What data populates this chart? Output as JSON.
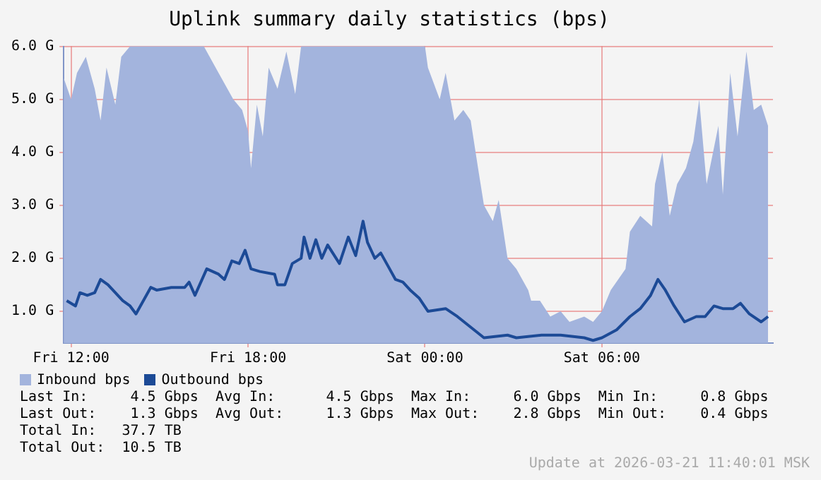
{
  "chart_data": {
    "type": "area",
    "title": "Uplink summary daily statistics (bps)",
    "xlim": [
      "2026-03-20T11:45",
      "2026-03-21T11:48"
    ],
    "xticks": [
      {
        "value": "2026-03-20T12:00",
        "label": "Fri 12:00"
      },
      {
        "value": "2026-03-20T18:00",
        "label": "Fri 18:00"
      },
      {
        "value": "2026-03-21T00:00",
        "label": "Sat 00:00"
      },
      {
        "value": "2026-03-21T06:00",
        "label": "Sat 06:00"
      }
    ],
    "ylim": [
      0.4,
      6.0
    ],
    "yticks": [
      {
        "value": 1,
        "label": "1.0 G"
      },
      {
        "value": 2,
        "label": "2.0 G"
      },
      {
        "value": 3,
        "label": "3.0 G"
      },
      {
        "value": 4,
        "label": "4.0 G"
      },
      {
        "value": 5,
        "label": "5.0 G"
      },
      {
        "value": 6,
        "label": "6.0 G"
      }
    ],
    "grid": true,
    "legend": "bottom",
    "series": [
      {
        "name": "Inbound bps",
        "color": "#a3b4dd",
        "x": [
          "2026-03-20T11:45",
          "2026-03-20T12:00",
          "2026-03-20T12:12",
          "2026-03-20T12:30",
          "2026-03-20T12:48",
          "2026-03-20T13:00",
          "2026-03-20T13:12",
          "2026-03-20T13:30",
          "2026-03-20T13:42",
          "2026-03-20T14:00",
          "2026-03-20T16:30",
          "2026-03-20T17:00",
          "2026-03-20T17:30",
          "2026-03-20T17:48",
          "2026-03-20T18:00",
          "2026-03-20T18:06",
          "2026-03-20T18:18",
          "2026-03-20T18:30",
          "2026-03-20T18:42",
          "2026-03-20T19:00",
          "2026-03-20T19:18",
          "2026-03-20T19:36",
          "2026-03-20T19:48",
          "2026-03-20T23:00",
          "2026-03-21T00:00",
          "2026-03-21T00:06",
          "2026-03-21T00:30",
          "2026-03-21T00:42",
          "2026-03-21T01:00",
          "2026-03-21T01:18",
          "2026-03-21T01:33",
          "2026-03-21T01:48",
          "2026-03-21T02:00",
          "2026-03-21T02:18",
          "2026-03-21T02:30",
          "2026-03-21T02:48",
          "2026-03-21T03:06",
          "2026-03-21T03:30",
          "2026-03-21T03:36",
          "2026-03-21T03:54",
          "2026-03-21T04:15",
          "2026-03-21T04:36",
          "2026-03-21T04:54",
          "2026-03-21T05:24",
          "2026-03-21T05:42",
          "2026-03-21T06:00",
          "2026-03-21T06:18",
          "2026-03-21T06:48",
          "2026-03-21T06:57",
          "2026-03-21T07:18",
          "2026-03-21T07:42",
          "2026-03-21T07:48",
          "2026-03-21T08:03",
          "2026-03-21T08:18",
          "2026-03-21T08:33",
          "2026-03-21T08:51",
          "2026-03-21T09:06",
          "2026-03-21T09:18",
          "2026-03-21T09:33",
          "2026-03-21T09:57",
          "2026-03-21T10:06",
          "2026-03-21T10:21",
          "2026-03-21T10:36",
          "2026-03-21T10:54",
          "2026-03-21T11:09",
          "2026-03-21T11:24",
          "2026-03-21T11:38"
        ],
        "values": [
          5.4,
          5.0,
          5.5,
          5.8,
          5.2,
          4.6,
          5.6,
          4.9,
          5.8,
          6.0,
          6.0,
          5.5,
          5.0,
          4.8,
          4.4,
          3.7,
          4.9,
          4.3,
          5.6,
          5.2,
          5.9,
          5.1,
          6.0,
          6.0,
          6.0,
          5.6,
          5.0,
          5.5,
          4.6,
          4.8,
          4.6,
          3.7,
          3.0,
          2.7,
          3.1,
          2.0,
          1.8,
          1.4,
          1.2,
          1.2,
          0.9,
          1.0,
          0.8,
          0.9,
          0.8,
          1.0,
          1.4,
          1.8,
          2.5,
          2.8,
          2.6,
          3.4,
          4.0,
          2.8,
          3.4,
          3.7,
          4.2,
          5.0,
          3.4,
          4.5,
          3.2,
          5.5,
          4.3,
          5.9,
          4.8,
          4.9,
          4.5
        ]
      },
      {
        "name": "Outbound bps",
        "type": "line",
        "color": "#1c4a96",
        "x": [
          "2026-03-20T11:51",
          "2026-03-20T12:09",
          "2026-03-20T12:18",
          "2026-03-20T12:33",
          "2026-03-20T12:48",
          "2026-03-20T13:00",
          "2026-03-20T13:15",
          "2026-03-20T13:30",
          "2026-03-20T13:45",
          "2026-03-20T14:00",
          "2026-03-20T14:12",
          "2026-03-20T14:27",
          "2026-03-20T14:42",
          "2026-03-20T14:54",
          "2026-03-20T15:24",
          "2026-03-20T15:51",
          "2026-03-20T16:00",
          "2026-03-20T16:12",
          "2026-03-20T16:36",
          "2026-03-20T17:00",
          "2026-03-20T17:12",
          "2026-03-20T17:27",
          "2026-03-20T17:42",
          "2026-03-20T17:54",
          "2026-03-20T18:06",
          "2026-03-20T18:24",
          "2026-03-20T18:54",
          "2026-03-20T19:00",
          "2026-03-20T19:15",
          "2026-03-20T19:30",
          "2026-03-20T19:48",
          "2026-03-20T19:54",
          "2026-03-20T20:06",
          "2026-03-20T20:18",
          "2026-03-20T20:30",
          "2026-03-20T20:42",
          "2026-03-20T21:06",
          "2026-03-20T21:24",
          "2026-03-20T21:39",
          "2026-03-20T21:54",
          "2026-03-20T22:03",
          "2026-03-20T22:18",
          "2026-03-20T22:30",
          "2026-03-20T22:45",
          "2026-03-20T23:00",
          "2026-03-20T23:15",
          "2026-03-20T23:30",
          "2026-03-20T23:48",
          "2026-03-21T00:06",
          "2026-03-21T00:42",
          "2026-03-21T01:06",
          "2026-03-21T01:33",
          "2026-03-21T02:00",
          "2026-03-21T02:48",
          "2026-03-21T03:06",
          "2026-03-21T03:57",
          "2026-03-21T04:36",
          "2026-03-21T05:24",
          "2026-03-21T05:42",
          "2026-03-21T06:00",
          "2026-03-21T06:30",
          "2026-03-21T06:57",
          "2026-03-21T07:18",
          "2026-03-21T07:39",
          "2026-03-21T07:54",
          "2026-03-21T08:09",
          "2026-03-21T08:27",
          "2026-03-21T08:48",
          "2026-03-21T09:12",
          "2026-03-21T09:30",
          "2026-03-21T09:48",
          "2026-03-21T10:06",
          "2026-03-21T10:27",
          "2026-03-21T10:42",
          "2026-03-21T11:00",
          "2026-03-21T11:24",
          "2026-03-21T11:38"
        ],
        "values": [
          1.2,
          1.1,
          1.35,
          1.3,
          1.35,
          1.6,
          1.5,
          1.35,
          1.2,
          1.1,
          0.95,
          1.2,
          1.45,
          1.4,
          1.45,
          1.45,
          1.55,
          1.3,
          1.8,
          1.7,
          1.6,
          1.95,
          1.9,
          2.15,
          1.8,
          1.75,
          1.7,
          1.5,
          1.5,
          1.9,
          2.0,
          2.4,
          2.0,
          2.35,
          2.0,
          2.25,
          1.9,
          2.4,
          2.05,
          2.7,
          2.3,
          2.0,
          2.1,
          1.85,
          1.6,
          1.55,
          1.4,
          1.25,
          1.0,
          1.05,
          0.9,
          0.7,
          0.5,
          0.55,
          0.5,
          0.55,
          0.55,
          0.5,
          0.45,
          0.5,
          0.65,
          0.9,
          1.05,
          1.3,
          1.6,
          1.4,
          1.1,
          0.8,
          0.9,
          0.9,
          1.1,
          1.05,
          1.05,
          1.15,
          0.95,
          0.8,
          0.9
        ]
      }
    ],
    "annotations": [
      "Last In:     4.5 Gbps  Avg In:      4.5 Gbps  Max In:     6.0 Gbps  Min In:     0.8 Gbps",
      "Last Out:    1.3 Gbps  Avg Out:     1.3 Gbps  Max Out:    2.8 Gbps  Min Out:    0.4 Gbps",
      "Total In:   37.7 TB",
      "Total Out:  10.5 TB",
      "Update at 2026-03-21 11:40:01 MSK"
    ]
  }
}
